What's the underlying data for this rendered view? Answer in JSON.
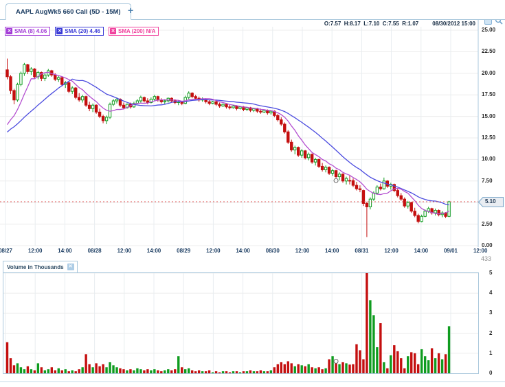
{
  "tab_bar": {
    "active_tab": "AAPL AugWk5 660 Call (5D - 15M)",
    "new_tab_label": "+"
  },
  "header": {
    "ohlc": "O:7.57  H:8.17  L:7.10  C:7.55  R:1.07",
    "timestamp": "08/30/2012 15:00"
  },
  "indicators": [
    {
      "label": "SMA (8) 4.06",
      "close_label": "✕",
      "color": "#a23bd6"
    },
    {
      "label": "SMA (20) 4.46",
      "close_label": "✕",
      "color": "#3b3bd6"
    },
    {
      "label": "SMA (200) N/A",
      "close_label": "✕",
      "color": "#f0409d"
    }
  ],
  "volume_panel": {
    "title": "Volume in Thousands",
    "close_label": "✕",
    "hover_value_label": "433"
  },
  "chart_data": {
    "type": "candlestick_with_volume",
    "symbol": "AAPL AugWk5 660 Call",
    "timeframe": "5D - 15M",
    "current_price": 5.1,
    "current_price_label": "5.10",
    "hover_index": 96,
    "hover_close": 7.55,
    "price_axis": {
      "range": [
        0,
        25
      ],
      "tick_values": [
        25,
        22.5,
        20,
        17.5,
        15,
        12.5,
        10,
        7.5,
        2.5,
        0
      ],
      "tick_labels": [
        "25.00",
        "22.50",
        "20.00",
        "17.50",
        "15.00",
        "12.50",
        "10.00",
        "7.50",
        "2.50",
        "0.00"
      ]
    },
    "time_axis": {
      "labels": [
        "08/27",
        "12:00",
        "14:00",
        "08/28",
        "12:00",
        "14:00",
        "08/29",
        "12:00",
        "14:00",
        "08/30",
        "12:00",
        "14:00",
        "08/31",
        "12:00",
        "14:00",
        "09/01",
        "12:00"
      ]
    },
    "volume_axis": {
      "range": [
        0,
        5
      ],
      "tick_labels": [
        "5",
        "4",
        "3",
        "2",
        "1",
        "0"
      ]
    },
    "colors": {
      "up": "#0f9c1f",
      "down": "#c40f0f",
      "sma8": "#b44fd0",
      "sma20": "#4b4bdf",
      "price_line": "#e05555",
      "grid": "#ececec",
      "border": "#a9c7dc"
    },
    "sma_periods": [
      8,
      20
    ],
    "sma_seed_closes": [
      10.5,
      11,
      11.5,
      12,
      12.5,
      13,
      13.2,
      13.4,
      13,
      12.6,
      12.8,
      13,
      13.2,
      13.4,
      13.2,
      13,
      13.2,
      13.4,
      13.3,
      13.2
    ],
    "candles": [
      [
        20.4,
        21.7,
        19.3,
        19.6
      ],
      [
        19.6,
        19.8,
        17.6,
        18.0
      ],
      [
        18.0,
        18.2,
        16.4,
        16.9
      ],
      [
        16.9,
        18.9,
        16.7,
        18.7
      ],
      [
        18.7,
        20.2,
        18.5,
        20.0
      ],
      [
        20.0,
        21.2,
        19.7,
        21.0
      ],
      [
        21.0,
        21.1,
        19.9,
        20.2
      ],
      [
        20.2,
        20.7,
        19.8,
        20.5
      ],
      [
        20.5,
        20.6,
        19.4,
        19.6
      ],
      [
        19.6,
        20.3,
        19.3,
        20.1
      ],
      [
        20.1,
        20.2,
        19.1,
        19.4
      ],
      [
        19.4,
        20.0,
        19.1,
        19.8
      ],
      [
        19.8,
        20.5,
        19.6,
        20.3
      ],
      [
        20.3,
        20.4,
        19.6,
        19.8
      ],
      [
        19.8,
        20.0,
        19.1,
        19.3
      ],
      [
        19.3,
        19.7,
        19.0,
        19.5
      ],
      [
        19.5,
        19.6,
        18.5,
        18.7
      ],
      [
        18.7,
        19.1,
        18.3,
        18.9
      ],
      [
        18.9,
        19.0,
        17.7,
        17.9
      ],
      [
        17.9,
        18.5,
        17.6,
        18.3
      ],
      [
        18.3,
        18.4,
        17.0,
        17.2
      ],
      [
        17.2,
        17.7,
        16.7,
        16.9
      ],
      [
        16.9,
        17.5,
        16.6,
        17.3
      ],
      [
        17.3,
        17.4,
        16.1,
        16.3
      ],
      [
        16.3,
        16.7,
        15.6,
        15.9
      ],
      [
        15.9,
        16.5,
        15.5,
        16.3
      ],
      [
        16.3,
        16.4,
        15.3,
        15.5
      ],
      [
        15.5,
        15.9,
        14.8,
        15.0
      ],
      [
        15.0,
        15.2,
        14.2,
        14.5
      ],
      [
        14.5,
        15.1,
        14.1,
        14.9
      ],
      [
        14.9,
        16.6,
        14.7,
        16.4
      ],
      [
        16.4,
        17.0,
        16.2,
        16.8
      ],
      [
        16.8,
        17.2,
        16.5,
        17.0
      ],
      [
        17.0,
        17.1,
        16.1,
        16.3
      ],
      [
        16.3,
        16.6,
        15.8,
        16.0
      ],
      [
        16.0,
        16.5,
        15.9,
        16.4
      ],
      [
        16.4,
        16.6,
        15.9,
        16.1
      ],
      [
        16.1,
        16.7,
        16.0,
        16.5
      ],
      [
        16.5,
        17.0,
        16.4,
        16.8
      ],
      [
        16.8,
        17.4,
        16.6,
        17.2
      ],
      [
        17.2,
        17.3,
        16.6,
        16.8
      ],
      [
        16.8,
        17.1,
        16.4,
        16.6
      ],
      [
        16.6,
        17.2,
        16.5,
        17.0
      ],
      [
        17.0,
        17.5,
        16.8,
        17.3
      ],
      [
        17.3,
        17.4,
        16.7,
        16.9
      ],
      [
        16.9,
        17.1,
        16.5,
        16.7
      ],
      [
        16.7,
        17.0,
        16.4,
        16.8
      ],
      [
        16.8,
        17.2,
        16.6,
        17.1
      ],
      [
        17.1,
        17.2,
        16.6,
        16.8
      ],
      [
        16.8,
        17.0,
        16.4,
        16.6
      ],
      [
        16.6,
        16.9,
        16.3,
        16.7
      ],
      [
        16.7,
        16.8,
        16.3,
        16.5
      ],
      [
        16.5,
        17.4,
        16.4,
        17.2
      ],
      [
        17.2,
        17.9,
        17.0,
        17.7
      ],
      [
        17.7,
        17.8,
        17.1,
        17.3
      ],
      [
        17.3,
        17.5,
        16.9,
        17.1
      ],
      [
        17.1,
        17.3,
        16.7,
        16.9
      ],
      [
        16.9,
        17.2,
        16.7,
        17.0
      ],
      [
        17.0,
        17.1,
        16.5,
        16.7
      ],
      [
        16.7,
        16.9,
        16.3,
        16.5
      ],
      [
        16.5,
        16.8,
        16.4,
        16.7
      ],
      [
        16.7,
        16.8,
        16.2,
        16.4
      ],
      [
        16.4,
        16.6,
        16.0,
        16.2
      ],
      [
        16.2,
        16.5,
        16.1,
        16.4
      ],
      [
        16.4,
        16.5,
        15.9,
        16.1
      ],
      [
        16.1,
        16.4,
        15.8,
        16.0
      ],
      [
        16.0,
        16.3,
        15.9,
        16.2
      ],
      [
        16.2,
        16.3,
        15.7,
        15.9
      ],
      [
        15.9,
        16.2,
        15.8,
        16.1
      ],
      [
        16.1,
        16.2,
        15.6,
        15.8
      ],
      [
        15.8,
        16.1,
        15.6,
        16.0
      ],
      [
        16.0,
        16.1,
        15.5,
        15.7
      ],
      [
        15.7,
        16.0,
        15.5,
        15.9
      ],
      [
        15.9,
        16.0,
        15.4,
        15.6
      ],
      [
        15.6,
        15.9,
        15.3,
        15.5
      ],
      [
        15.5,
        15.8,
        15.4,
        15.7
      ],
      [
        15.7,
        15.8,
        15.2,
        15.4
      ],
      [
        15.4,
        15.7,
        15.2,
        15.6
      ],
      [
        15.6,
        15.7,
        14.9,
        15.1
      ],
      [
        15.1,
        15.3,
        14.4,
        14.6
      ],
      [
        14.6,
        14.9,
        13.9,
        14.1
      ],
      [
        14.1,
        14.3,
        13.0,
        13.2
      ],
      [
        13.2,
        13.4,
        11.8,
        12.0
      ],
      [
        12.0,
        12.3,
        10.9,
        11.1
      ],
      [
        11.1,
        11.6,
        10.6,
        11.4
      ],
      [
        11.4,
        11.5,
        10.3,
        10.5
      ],
      [
        10.5,
        11.2,
        10.2,
        11.0
      ],
      [
        11.0,
        11.1,
        10.0,
        10.2
      ],
      [
        10.2,
        10.8,
        9.9,
        10.6
      ],
      [
        10.6,
        10.7,
        9.5,
        9.7
      ],
      [
        9.7,
        10.2,
        9.3,
        10.0
      ],
      [
        10.0,
        10.1,
        9.0,
        9.2
      ],
      [
        9.2,
        9.6,
        8.6,
        8.8
      ],
      [
        8.8,
        9.3,
        8.5,
        9.1
      ],
      [
        9.1,
        9.2,
        8.2,
        8.4
      ],
      [
        8.4,
        8.9,
        8.1,
        8.7
      ],
      [
        8.7,
        8.8,
        7.8,
        8.0
      ],
      [
        8.0,
        8.5,
        7.6,
        8.3
      ],
      [
        8.3,
        8.4,
        7.3,
        7.5
      ],
      [
        7.5,
        8.0,
        7.1,
        7.8
      ],
      [
        7.57,
        8.17,
        7.1,
        7.55
      ],
      [
        7.55,
        7.8,
        6.8,
        7.0
      ],
      [
        7.0,
        7.4,
        6.4,
        6.6
      ],
      [
        6.6,
        7.0,
        6.2,
        6.5
      ],
      [
        6.4,
        6.5,
        4.6,
        4.9
      ],
      [
        4.9,
        5.1,
        1.0,
        4.5
      ],
      [
        4.5,
        5.6,
        4.2,
        5.4
      ],
      [
        5.4,
        6.3,
        5.2,
        6.1
      ],
      [
        6.1,
        7.0,
        5.9,
        6.8
      ],
      [
        6.8,
        7.2,
        6.4,
        6.6
      ],
      [
        6.6,
        7.9,
        6.5,
        7.5
      ],
      [
        7.5,
        7.6,
        6.7,
        6.9
      ],
      [
        6.9,
        7.3,
        6.5,
        7.1
      ],
      [
        7.1,
        7.2,
        6.2,
        6.4
      ],
      [
        6.4,
        6.6,
        5.6,
        5.8
      ],
      [
        5.8,
        6.1,
        5.2,
        5.4
      ],
      [
        5.4,
        5.6,
        4.4,
        4.6
      ],
      [
        4.6,
        5.2,
        4.3,
        5.0
      ],
      [
        5.0,
        5.1,
        3.8,
        4.0
      ],
      [
        4.0,
        4.4,
        3.3,
        3.5
      ],
      [
        3.5,
        3.7,
        2.6,
        2.8
      ],
      [
        2.8,
        3.6,
        2.7,
        3.4
      ],
      [
        3.4,
        4.2,
        3.3,
        4.0
      ],
      [
        4.0,
        4.5,
        3.8,
        4.3
      ],
      [
        4.3,
        4.4,
        3.6,
        3.8
      ],
      [
        3.8,
        4.3,
        3.5,
        4.1
      ],
      [
        4.1,
        4.2,
        3.4,
        3.6
      ],
      [
        3.6,
        4.0,
        3.3,
        3.8
      ],
      [
        3.8,
        3.9,
        3.2,
        3.4
      ],
      [
        3.4,
        5.2,
        3.3,
        5.1
      ]
    ],
    "volumes": [
      1.55,
      0.75,
      0.4,
      0.5,
      0.3,
      0.2,
      0.35,
      0.2,
      0.15,
      0.5,
      0.3,
      0.15,
      0.2,
      0.3,
      0.15,
      0.25,
      0.15,
      0.2,
      0.1,
      0.15,
      0.1,
      0.2,
      0.3,
      0.95,
      0.45,
      0.3,
      0.5,
      0.35,
      0.45,
      0.3,
      0.55,
      0.4,
      0.3,
      0.25,
      0.2,
      0.15,
      0.2,
      0.15,
      0.25,
      0.2,
      0.15,
      0.2,
      0.15,
      0.2,
      0.15,
      0.1,
      0.15,
      0.2,
      0.15,
      0.2,
      0.85,
      0.3,
      0.2,
      0.25,
      0.15,
      0.1,
      0.15,
      0.1,
      0.1,
      0.15,
      0.05,
      0.1,
      0.05,
      0.1,
      0.1,
      0.05,
      0.1,
      0.1,
      0.05,
      0.1,
      0.1,
      0.15,
      0.1,
      0.1,
      0.15,
      0.1,
      0.1,
      0.15,
      0.3,
      0.45,
      0.55,
      0.45,
      0.6,
      0.5,
      0.35,
      0.45,
      0.4,
      0.35,
      0.45,
      0.3,
      0.25,
      0.3,
      0.2,
      0.25,
      0.7,
      0.85,
      0.6,
      0.45,
      0.55,
      0.5,
      0.433,
      0.45,
      1.45,
      1.15,
      0.7,
      5.0,
      3.65,
      2.9,
      1.3,
      2.5,
      0.55,
      0.25,
      0.9,
      1.4,
      1.1,
      0.75,
      0.25,
      0.85,
      1.05,
      1.0,
      0.45,
      1.2,
      0.85,
      0.65,
      1.25,
      0.75,
      1.0,
      0.7,
      0.95,
      2.35
    ]
  }
}
